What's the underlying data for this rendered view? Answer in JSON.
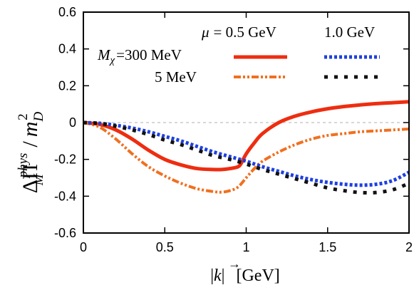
{
  "chart_data": {
    "type": "line",
    "xlabel_parts": {
      "pre": "|",
      "k": "k",
      "post": "|",
      "unit": "[GeV]"
    },
    "ylabel_parts": {
      "delta_pi": "ΔΠ",
      "sup": "phys",
      "sub": "M",
      "slash": "/",
      "m": "m",
      "m_sub": "D",
      "m_sup": "2"
    },
    "xlim": [
      0,
      2
    ],
    "ylim": [
      -0.6,
      0.6
    ],
    "xticks": [
      0,
      0.5,
      1,
      1.5,
      2
    ],
    "xtick_labels": [
      "0",
      "0.5",
      "1",
      "1.5",
      "2"
    ],
    "yticks": [
      -0.6,
      -0.4,
      -0.2,
      0,
      0.2,
      0.4,
      0.6
    ],
    "ytick_labels": [
      "-0.6",
      "-0.4",
      "-0.2",
      "0",
      "0.2",
      "0.4",
      "0.6"
    ],
    "zero_line": true,
    "grid": false,
    "legend": {
      "mu_symbol": "μ",
      "mu_eq": "= 0.5 GeV",
      "mu_col2": "1.0 GeV",
      "m_symbol": "M",
      "m_sub": "χ",
      "m_row1": "=300 MeV",
      "m_row2": "5 MeV"
    },
    "series": [
      {
        "color": "#ee2d10",
        "style": "solid",
        "x": [
          0,
          0.1,
          0.2,
          0.3,
          0.4,
          0.5,
          0.6,
          0.7,
          0.8,
          0.85,
          0.9,
          0.95,
          0.97,
          1.0,
          1.05,
          1.1,
          1.2,
          1.3,
          1.4,
          1.5,
          1.6,
          1.7,
          1.8,
          1.9,
          2.0
        ],
        "y": [
          0,
          -0.01,
          -0.04,
          -0.09,
          -0.15,
          -0.2,
          -0.23,
          -0.25,
          -0.255,
          -0.255,
          -0.25,
          -0.24,
          -0.22,
          -0.17,
          -0.11,
          -0.06,
          0.0,
          0.035,
          0.058,
          0.075,
          0.087,
          0.096,
          0.103,
          0.108,
          0.113
        ]
      },
      {
        "color": "#f07020",
        "style": "dashdotdot",
        "x": [
          0,
          0.1,
          0.2,
          0.3,
          0.4,
          0.5,
          0.6,
          0.7,
          0.8,
          0.85,
          0.9,
          0.95,
          1.0,
          1.05,
          1.1,
          1.2,
          1.3,
          1.4,
          1.5,
          1.6,
          1.7,
          1.8,
          1.9,
          2.0
        ],
        "y": [
          0,
          -0.025,
          -0.09,
          -0.17,
          -0.24,
          -0.29,
          -0.33,
          -0.36,
          -0.375,
          -0.378,
          -0.37,
          -0.35,
          -0.3,
          -0.25,
          -0.21,
          -0.16,
          -0.12,
          -0.09,
          -0.07,
          -0.06,
          -0.05,
          -0.045,
          -0.04,
          -0.035
        ]
      },
      {
        "color": "#1e40e0",
        "style": "dotted",
        "x": [
          0,
          0.1,
          0.2,
          0.3,
          0.4,
          0.5,
          0.6,
          0.7,
          0.8,
          0.9,
          1.0,
          1.1,
          1.2,
          1.3,
          1.4,
          1.5,
          1.6,
          1.7,
          1.8,
          1.9,
          2.0
        ],
        "y": [
          0,
          -0.004,
          -0.015,
          -0.03,
          -0.05,
          -0.075,
          -0.1,
          -0.13,
          -0.16,
          -0.185,
          -0.21,
          -0.24,
          -0.265,
          -0.29,
          -0.31,
          -0.325,
          -0.335,
          -0.34,
          -0.335,
          -0.315,
          -0.27
        ]
      },
      {
        "color": "#111111",
        "style": "dotted",
        "x": [
          0,
          0.1,
          0.2,
          0.3,
          0.4,
          0.5,
          0.6,
          0.7,
          0.8,
          0.9,
          1.0,
          1.1,
          1.2,
          1.3,
          1.4,
          1.5,
          1.6,
          1.7,
          1.8,
          1.9,
          2.0
        ],
        "y": [
          0,
          -0.005,
          -0.02,
          -0.04,
          -0.065,
          -0.095,
          -0.12,
          -0.15,
          -0.18,
          -0.2,
          -0.225,
          -0.255,
          -0.28,
          -0.305,
          -0.33,
          -0.355,
          -0.37,
          -0.38,
          -0.38,
          -0.365,
          -0.33
        ]
      }
    ]
  }
}
